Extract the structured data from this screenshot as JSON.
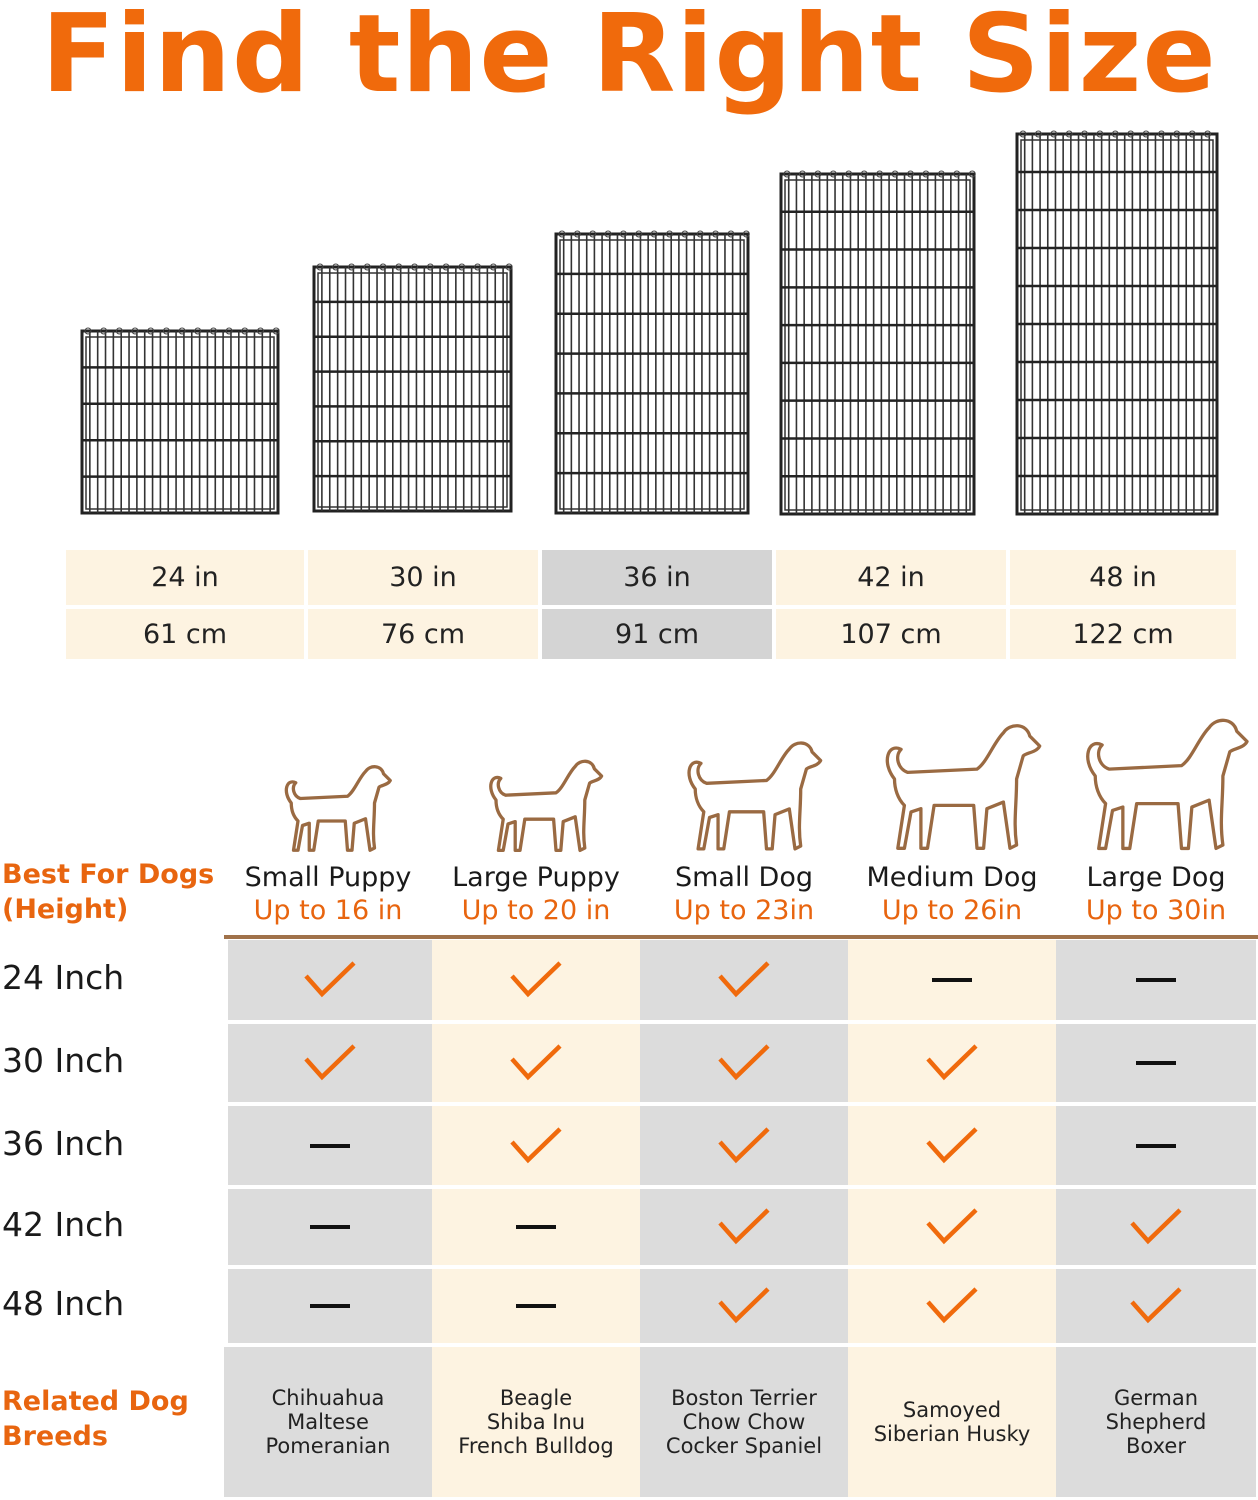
{
  "title": "Find the Right Size",
  "sizes": [
    {
      "in": "24 in",
      "cm": "61 cm"
    },
    {
      "in": "30 in",
      "cm": "76 cm"
    },
    {
      "in": "36 in",
      "cm": "91 cm"
    },
    {
      "in": "42 in",
      "cm": "107 cm"
    },
    {
      "in": "48 in",
      "cm": "122 cm"
    }
  ],
  "highlighted_size_index": 2,
  "best_for_label_line1": "Best For Dogs",
  "best_for_label_line2": "(Height)",
  "dogs": [
    {
      "name": "Small Puppy",
      "height": "Up to 16 in",
      "breeds": [
        "Chihuahua",
        "Maltese",
        "Pomeranian"
      ]
    },
    {
      "name": "Large Puppy",
      "height": "Up to 20 in",
      "breeds": [
        "Beagle",
        "Shiba Inu",
        "French Bulldog"
      ]
    },
    {
      "name": "Small Dog",
      "height": "Up to 23in",
      "breeds": [
        "Boston Terrier",
        "Chow Chow",
        "Cocker Spaniel"
      ]
    },
    {
      "name": "Medium Dog",
      "height": "Up to 26in",
      "breeds": [
        "Samoyed",
        "Siberian Husky"
      ]
    },
    {
      "name": "Large Dog",
      "height": "Up to 30in",
      "breeds": [
        "German",
        "Shepherd",
        "Boxer"
      ]
    }
  ],
  "rows": [
    {
      "label": "24 Inch",
      "fit": [
        true,
        true,
        true,
        false,
        false
      ]
    },
    {
      "label": "30 Inch",
      "fit": [
        true,
        true,
        true,
        true,
        false
      ]
    },
    {
      "label": "36 Inch",
      "fit": [
        false,
        true,
        true,
        true,
        false
      ]
    },
    {
      "label": "42 Inch",
      "fit": [
        false,
        false,
        true,
        true,
        true
      ]
    },
    {
      "label": "48 Inch",
      "fit": [
        false,
        false,
        true,
        true,
        true
      ]
    }
  ],
  "related_label_line1": "Related Dog",
  "related_label_line2": "Breeds",
  "colors": {
    "accent": "#f06a0c",
    "cream": "#fdf3e1",
    "gray": "#dcdcdc",
    "dog_outline": "#9a6a42",
    "divider": "#a0724a"
  }
}
